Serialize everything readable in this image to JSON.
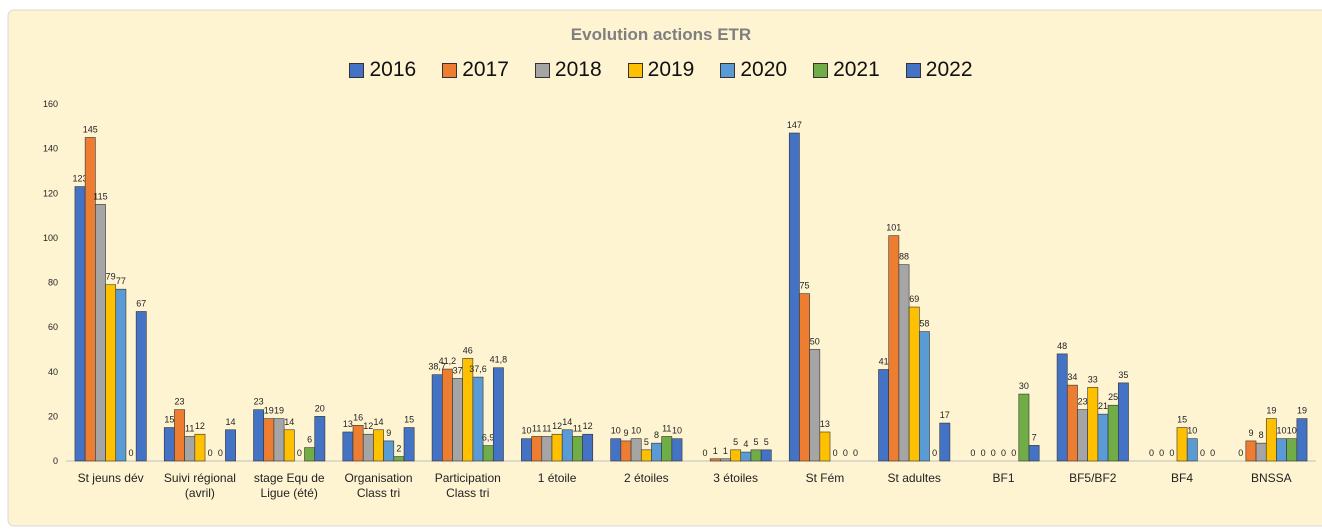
{
  "chart_data": {
    "type": "bar",
    "title": "Evolution actions ETR",
    "categories": [
      "St jeuns dév",
      "Suivi régional (avril)",
      "stage Equ de Ligue (été)",
      "Organisation Class tri",
      "Participation Class tri",
      "1 étoile",
      "2 étoiles",
      "3 étoiles",
      "St Fém",
      "St adultes",
      "BF1",
      "BF5/BF2",
      "BF4",
      "BNSSA"
    ],
    "series": [
      {
        "name": "2016",
        "color": "#4472c4",
        "values": [
          123,
          15,
          23,
          13,
          38.7,
          10,
          10,
          0,
          147,
          41,
          0,
          48,
          0,
          0
        ],
        "value_labels": [
          "123",
          "15",
          "23",
          "13",
          "38,7",
          "10",
          "10",
          "0",
          "147",
          "41",
          "0",
          "48",
          "0",
          "0"
        ]
      },
      {
        "name": "2017",
        "color": "#ed7d31",
        "values": [
          145,
          23,
          19,
          16,
          41.2,
          11,
          9,
          1,
          75,
          101,
          0,
          34,
          0,
          9
        ],
        "value_labels": [
          "145",
          "23",
          "19",
          "16",
          "41,2",
          "11",
          "9",
          "1",
          "75",
          "101",
          "0",
          "34",
          "0",
          "9"
        ]
      },
      {
        "name": "2018",
        "color": "#a5a5a5",
        "values": [
          115,
          11,
          19,
          12,
          37,
          11,
          10,
          1,
          50,
          88,
          0,
          23,
          0,
          8
        ]
      },
      {
        "name": "2019",
        "color": "#ffc000",
        "values": [
          79,
          12,
          14,
          14,
          46,
          12,
          5,
          5,
          13,
          69,
          0,
          33,
          15,
          19
        ]
      },
      {
        "name": "2020",
        "color": "#5b9bd5",
        "values": [
          77,
          0,
          0,
          9,
          37.6,
          14,
          8,
          4,
          0,
          58,
          0,
          21,
          10,
          10
        ],
        "value_labels": [
          "77",
          "0",
          "0",
          "9",
          "37,6",
          "14",
          "8",
          "4",
          "0",
          "58",
          "0",
          "21",
          "10",
          "10"
        ]
      },
      {
        "name": "2021",
        "color": "#70ad47",
        "values": [
          0,
          0,
          6,
          2,
          6.9,
          11,
          11,
          5,
          0,
          0,
          30,
          25,
          0,
          10
        ],
        "value_labels": [
          "0",
          "0",
          "6",
          "2",
          "6,9",
          "11",
          "11",
          "5",
          "0",
          "0",
          "30",
          "25",
          "0",
          "10"
        ]
      },
      {
        "name": "2022",
        "color": "#4472c4",
        "values": [
          67,
          14,
          20,
          15,
          41.8,
          12,
          10,
          5,
          0,
          17,
          7,
          35,
          0,
          19
        ],
        "value_labels": [
          "67",
          "14",
          "20",
          "15",
          "41,8",
          "12",
          "10",
          "5",
          "0",
          "17",
          "7",
          "35",
          "0",
          "19"
        ]
      }
    ],
    "ylim": [
      0,
      160
    ],
    "yticks": [
      0,
      20,
      40,
      60,
      80,
      100,
      120,
      140,
      160
    ],
    "grid": false
  }
}
